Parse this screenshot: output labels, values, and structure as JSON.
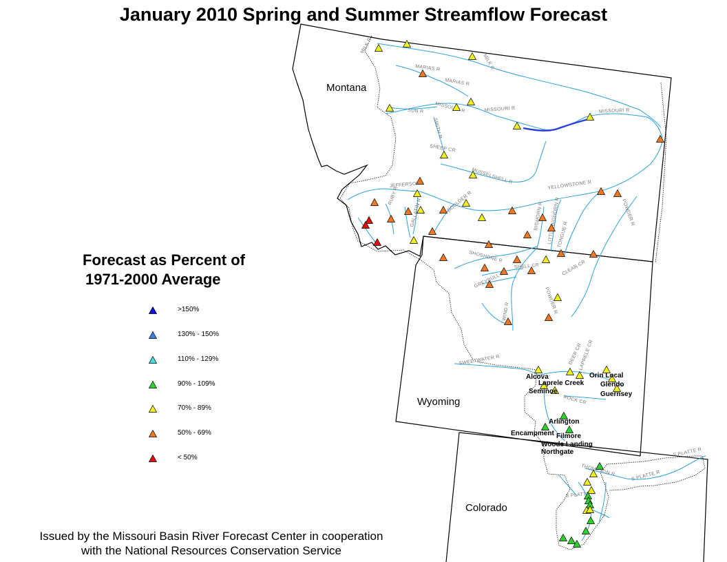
{
  "title": "January 2010 Spring and Summer Streamflow Forecast",
  "legend": {
    "title_line1": "Forecast as Percent of",
    "title_line2": "1971-2000 Average",
    "items": [
      {
        "label": ">150%",
        "color": "#1010e0"
      },
      {
        "label": "130% - 150%",
        "color": "#3a7fe0"
      },
      {
        "label": "110% - 129%",
        "color": "#40e0e0"
      },
      {
        "label": "90% - 109%",
        "color": "#30d030"
      },
      {
        "label": "70% - 89%",
        "color": "#f0f020"
      },
      {
        "label": "50% - 69%",
        "color": "#f07820"
      },
      {
        "label": "< 50%",
        "color": "#e01010"
      }
    ]
  },
  "footer": {
    "line1": "Issued by the Missouri Basin River Forecast Center in cooperation",
    "line2": "with the National Resources Conservation Service"
  },
  "states": [
    "Montana",
    "Wyoming",
    "Colorado"
  ],
  "rivers": [
    "MILK R",
    "MARIAS R",
    "MARIAS R",
    "MILK R",
    "MISSOURI R",
    "SUN R",
    "MISSOURI R",
    "MISSOURI R",
    "SMITH R",
    "SHEEP CR",
    "MUSSELSHELL R",
    "JEFFERSON",
    "RUBY R",
    "GALLATIN R",
    "BOULDER R",
    "YELLOWSTONE R",
    "BIGHORN R",
    "LITTLE BIGHORN R",
    "TONGUE R",
    "POWDER R",
    "SHOSHONE R",
    "SHELL CR",
    "GREYBULL R",
    "CLEAR CR",
    "POWDER R",
    "WIND R",
    "SWEETWATER R",
    "DEER CR",
    "LAPRELE CR",
    "ROCK CR",
    "THOMPSON R",
    "S PLATTE R",
    "S PLATTE R",
    "S PLATTE R"
  ],
  "sites": [
    "Orin Local",
    "Alcova",
    "Laprele Creek",
    "Glendo",
    "Seminoe",
    "Guernsey",
    "Arlington",
    "Encampment",
    "Filmore",
    "Woods Landing",
    "Northgate"
  ],
  "station_counts": {
    ">150%": 0,
    "130% - 150%": 0,
    "110% - 129%": 0,
    "90% - 109%": 14,
    "70% - 89%": 31,
    "50% - 69%": 32,
    "< 50%": 3
  }
}
